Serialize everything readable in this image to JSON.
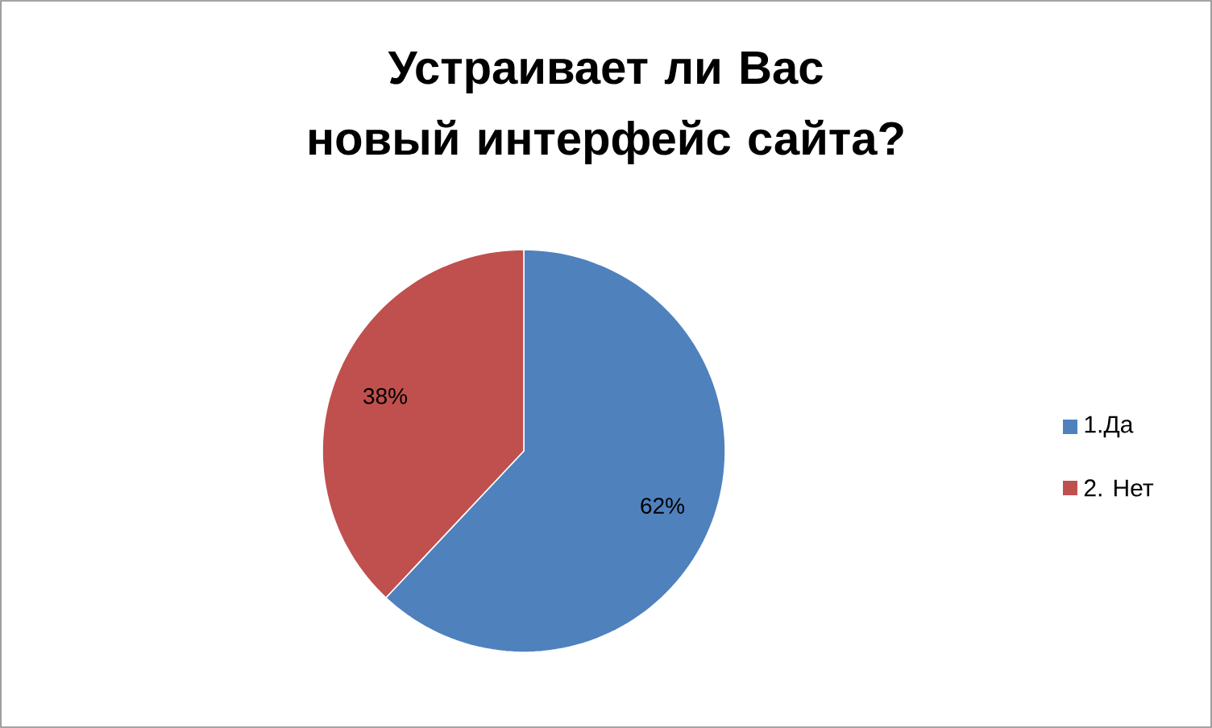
{
  "chart_data": {
    "type": "pie",
    "title": "Устраивает ли Вас новый интерфейс сайта?",
    "categories": [
      "1.Да",
      "2. Нет"
    ],
    "values": [
      62,
      38
    ],
    "colors": [
      "#4f81bd",
      "#c0504d"
    ],
    "value_labels": [
      "62%",
      "38%"
    ],
    "legend": "right"
  }
}
